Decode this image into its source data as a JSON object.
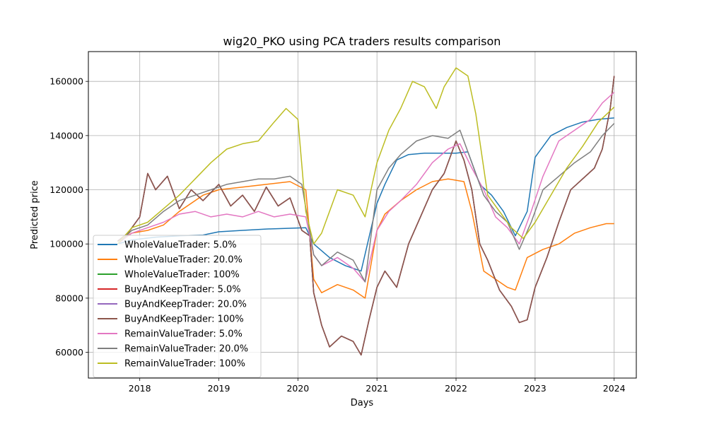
{
  "chart_data": {
    "type": "line",
    "title": "wig20_PKO using PCA traders results comparison",
    "xlabel": "Days",
    "ylabel": "Predicted price",
    "xlim": [
      2017.35,
      2024.28
    ],
    "ylim": [
      50500,
      171000
    ],
    "x_ticks": [
      2018,
      2019,
      2020,
      2021,
      2022,
      2023,
      2024
    ],
    "x_tick_labels": [
      "2018",
      "2019",
      "2020",
      "2021",
      "2022",
      "2023",
      "2024"
    ],
    "y_ticks": [
      60000,
      80000,
      100000,
      120000,
      140000,
      160000
    ],
    "y_tick_labels": [
      "60000",
      "80000",
      "100000",
      "120000",
      "140000",
      "160000"
    ],
    "grid": true,
    "legend_position": "lower-left",
    "series": [
      {
        "name": "WholeValueTrader: 5.0%",
        "color": "#1f77b4",
        "x": [
          2017.72,
          2017.9,
          2018.2,
          2018.5,
          2018.8,
          2019.0,
          2019.3,
          2019.6,
          2019.9,
          2020.1,
          2020.2,
          2020.4,
          2020.6,
          2020.8,
          2021.0,
          2021.1,
          2021.25,
          2021.4,
          2021.6,
          2021.8,
          2022.0,
          2022.15,
          2022.3,
          2022.45,
          2022.6,
          2022.75,
          2022.9,
          2023.0,
          2023.2,
          2023.4,
          2023.6,
          2023.8,
          2024.0
        ],
        "y": [
          100000,
          101500,
          102500,
          103000,
          103300,
          104500,
          105000,
          105500,
          105800,
          106000,
          100000,
          95000,
          92000,
          90000,
          115000,
          122000,
          131000,
          133000,
          133500,
          133500,
          133500,
          134000,
          122000,
          118000,
          112000,
          103000,
          112000,
          132000,
          140000,
          143000,
          145000,
          146000,
          146500
        ]
      },
      {
        "name": "WholeValueTrader: 20.0%",
        "color": "#ff7f0e",
        "x": [
          2017.72,
          2017.9,
          2018.1,
          2018.3,
          2018.5,
          2018.8,
          2019.0,
          2019.3,
          2019.6,
          2019.9,
          2020.1,
          2020.2,
          2020.3,
          2020.5,
          2020.7,
          2020.85,
          2021.0,
          2021.1,
          2021.3,
          2021.5,
          2021.7,
          2021.9,
          2022.1,
          2022.2,
          2022.35,
          2022.5,
          2022.65,
          2022.75,
          2022.9,
          2023.1,
          2023.3,
          2023.5,
          2023.7,
          2023.9,
          2024.0
        ],
        "y": [
          101000,
          104000,
          105000,
          107000,
          112000,
          118000,
          120000,
          121000,
          122000,
          123000,
          120000,
          87000,
          82000,
          85000,
          83000,
          80000,
          105000,
          111000,
          116000,
          120000,
          123000,
          124000,
          123000,
          112000,
          90000,
          87000,
          84000,
          83000,
          95000,
          98000,
          100000,
          104000,
          106000,
          107500,
          107500
        ]
      },
      {
        "name": "WholeValueTrader: 100%",
        "color": "#2ca02c",
        "x": [
          2017.72,
          2017.85,
          2018.0,
          2018.1,
          2018.2,
          2018.35,
          2018.5,
          2018.65,
          2018.8,
          2019.0,
          2019.15,
          2019.3,
          2019.45,
          2019.6,
          2019.75,
          2019.9,
          2020.05,
          2020.15,
          2020.2,
          2020.3,
          2020.4,
          2020.55,
          2020.7,
          2020.8,
          2020.9,
          2021.0,
          2021.1,
          2021.25,
          2021.4,
          2021.55,
          2021.7,
          2021.85,
          2022.0,
          2022.1,
          2022.2,
          2022.3,
          2022.4,
          2022.55,
          2022.7,
          2022.8,
          2022.9,
          2023.0,
          2023.15,
          2023.3,
          2023.45,
          2023.6,
          2023.75,
          2023.85,
          2023.95,
          2024.0
        ],
        "y": [
          101000,
          104000,
          110000,
          126000,
          120000,
          125000,
          113000,
          120000,
          116000,
          122000,
          114000,
          118000,
          112000,
          121000,
          114000,
          117000,
          105000,
          103000,
          82000,
          70000,
          62000,
          66000,
          64000,
          59000,
          72000,
          84000,
          90000,
          84000,
          100000,
          110000,
          120000,
          126000,
          138000,
          131000,
          120000,
          100000,
          94000,
          83000,
          77000,
          71000,
          72000,
          84000,
          95000,
          108000,
          120000,
          124000,
          128000,
          135000,
          150000,
          162000
        ]
      },
      {
        "name": "BuyAndKeepTrader: 5.0%",
        "color": "#d62728",
        "x": [
          2017.72,
          2017.85,
          2018.0,
          2018.1,
          2018.2,
          2018.35,
          2018.5,
          2018.65,
          2018.8,
          2019.0,
          2019.15,
          2019.3,
          2019.45,
          2019.6,
          2019.75,
          2019.9,
          2020.05,
          2020.15,
          2020.2,
          2020.3,
          2020.4,
          2020.55,
          2020.7,
          2020.8,
          2020.9,
          2021.0,
          2021.1,
          2021.25,
          2021.4,
          2021.55,
          2021.7,
          2021.85,
          2022.0,
          2022.1,
          2022.2,
          2022.3,
          2022.4,
          2022.55,
          2022.7,
          2022.8,
          2022.9,
          2023.0,
          2023.15,
          2023.3,
          2023.45,
          2023.6,
          2023.75,
          2023.85,
          2023.95,
          2024.0
        ],
        "y": [
          101000,
          104000,
          110000,
          126000,
          120000,
          125000,
          113000,
          120000,
          116000,
          122000,
          114000,
          118000,
          112000,
          121000,
          114000,
          117000,
          105000,
          103000,
          82000,
          70000,
          62000,
          66000,
          64000,
          59000,
          72000,
          84000,
          90000,
          84000,
          100000,
          110000,
          120000,
          126000,
          138000,
          131000,
          120000,
          100000,
          94000,
          83000,
          77000,
          71000,
          72000,
          84000,
          95000,
          108000,
          120000,
          124000,
          128000,
          135000,
          150000,
          162000
        ]
      },
      {
        "name": "BuyAndKeepTrader: 20.0%",
        "color": "#9467bd",
        "x": [
          2017.72,
          2017.85,
          2018.0,
          2018.1,
          2018.2,
          2018.35,
          2018.5,
          2018.65,
          2018.8,
          2019.0,
          2019.15,
          2019.3,
          2019.45,
          2019.6,
          2019.75,
          2019.9,
          2020.05,
          2020.15,
          2020.2,
          2020.3,
          2020.4,
          2020.55,
          2020.7,
          2020.8,
          2020.9,
          2021.0,
          2021.1,
          2021.25,
          2021.4,
          2021.55,
          2021.7,
          2021.85,
          2022.0,
          2022.1,
          2022.2,
          2022.3,
          2022.4,
          2022.55,
          2022.7,
          2022.8,
          2022.9,
          2023.0,
          2023.15,
          2023.3,
          2023.45,
          2023.6,
          2023.75,
          2023.85,
          2023.95,
          2024.0
        ],
        "y": [
          101000,
          104000,
          110000,
          126000,
          120000,
          125000,
          113000,
          120000,
          116000,
          122000,
          114000,
          118000,
          112000,
          121000,
          114000,
          117000,
          105000,
          103000,
          82000,
          70000,
          62000,
          66000,
          64000,
          59000,
          72000,
          84000,
          90000,
          84000,
          100000,
          110000,
          120000,
          126000,
          138000,
          131000,
          120000,
          100000,
          94000,
          83000,
          77000,
          71000,
          72000,
          84000,
          95000,
          108000,
          120000,
          124000,
          128000,
          135000,
          150000,
          162000
        ]
      },
      {
        "name": "BuyAndKeepTrader: 100%",
        "color": "#8c564b",
        "x": [
          2017.72,
          2017.85,
          2018.0,
          2018.1,
          2018.2,
          2018.35,
          2018.5,
          2018.65,
          2018.8,
          2019.0,
          2019.15,
          2019.3,
          2019.45,
          2019.6,
          2019.75,
          2019.9,
          2020.05,
          2020.15,
          2020.2,
          2020.3,
          2020.4,
          2020.55,
          2020.7,
          2020.8,
          2020.9,
          2021.0,
          2021.1,
          2021.25,
          2021.4,
          2021.55,
          2021.7,
          2021.85,
          2022.0,
          2022.1,
          2022.2,
          2022.3,
          2022.4,
          2022.55,
          2022.7,
          2022.8,
          2022.9,
          2023.0,
          2023.15,
          2023.3,
          2023.45,
          2023.6,
          2023.75,
          2023.85,
          2023.95,
          2024.0
        ],
        "y": [
          101000,
          104000,
          110000,
          126000,
          120000,
          125000,
          113000,
          120000,
          116000,
          122000,
          114000,
          118000,
          112000,
          121000,
          114000,
          117000,
          105000,
          103000,
          82000,
          70000,
          62000,
          66000,
          64000,
          59000,
          72000,
          84000,
          90000,
          84000,
          100000,
          110000,
          120000,
          126000,
          138000,
          131000,
          120000,
          100000,
          94000,
          83000,
          77000,
          71000,
          72000,
          84000,
          95000,
          108000,
          120000,
          124000,
          128000,
          135000,
          150000,
          162000
        ]
      },
      {
        "name": "RemainValueTrader: 5.0%",
        "color": "#e377c2",
        "x": [
          2017.72,
          2017.9,
          2018.1,
          2018.3,
          2018.5,
          2018.7,
          2018.9,
          2019.1,
          2019.3,
          2019.5,
          2019.7,
          2019.9,
          2020.1,
          2020.2,
          2020.3,
          2020.5,
          2020.7,
          2020.85,
          2021.0,
          2021.15,
          2021.3,
          2021.5,
          2021.7,
          2021.9,
          2022.05,
          2022.2,
          2022.35,
          2022.5,
          2022.65,
          2022.8,
          2022.95,
          2023.1,
          2023.3,
          2023.5,
          2023.7,
          2023.85,
          2024.0
        ],
        "y": [
          100000,
          104000,
          106000,
          108000,
          111000,
          112000,
          110000,
          111000,
          110000,
          112000,
          110000,
          111000,
          110000,
          96000,
          92000,
          95000,
          91000,
          86000,
          105000,
          112000,
          116000,
          122000,
          130000,
          135000,
          137000,
          128000,
          120000,
          110000,
          106000,
          100000,
          112000,
          125000,
          138000,
          142000,
          146000,
          152000,
          156000
        ]
      },
      {
        "name": "RemainValueTrader: 20.0%",
        "color": "#7f7f7f",
        "x": [
          2017.72,
          2017.9,
          2018.1,
          2018.3,
          2018.5,
          2018.7,
          2018.9,
          2019.1,
          2019.3,
          2019.5,
          2019.7,
          2019.9,
          2020.05,
          2020.2,
          2020.3,
          2020.5,
          2020.7,
          2020.85,
          2021.0,
          2021.15,
          2021.3,
          2021.5,
          2021.7,
          2021.9,
          2022.05,
          2022.2,
          2022.35,
          2022.5,
          2022.65,
          2022.8,
          2022.95,
          2023.1,
          2023.3,
          2023.5,
          2023.7,
          2023.85,
          2024.0
        ],
        "y": [
          100000,
          105000,
          107000,
          112000,
          116000,
          118000,
          120000,
          122000,
          123000,
          124000,
          124000,
          125000,
          122000,
          96000,
          92000,
          97000,
          94000,
          86000,
          120000,
          128000,
          133000,
          138000,
          140000,
          139000,
          142000,
          130000,
          118000,
          112000,
          108000,
          98000,
          108000,
          120000,
          125000,
          130000,
          134000,
          140000,
          144500
        ]
      },
      {
        "name": "RemainValueTrader: 100%",
        "color": "#bcbd22",
        "x": [
          2017.72,
          2017.9,
          2018.1,
          2018.3,
          2018.5,
          2018.7,
          2018.9,
          2019.1,
          2019.3,
          2019.5,
          2019.7,
          2019.85,
          2020.0,
          2020.1,
          2020.2,
          2020.3,
          2020.5,
          2020.7,
          2020.85,
          2021.0,
          2021.15,
          2021.3,
          2021.45,
          2021.6,
          2021.75,
          2021.85,
          2022.0,
          2022.15,
          2022.25,
          2022.4,
          2022.55,
          2022.7,
          2022.85,
          2023.0,
          2023.2,
          2023.4,
          2023.6,
          2023.8,
          2024.0
        ],
        "y": [
          100000,
          106000,
          108000,
          113000,
          118000,
          124000,
          130000,
          135000,
          137000,
          138000,
          145000,
          150000,
          146000,
          112000,
          100000,
          104000,
          120000,
          118000,
          110000,
          130000,
          142000,
          150000,
          160000,
          158000,
          150000,
          158000,
          165000,
          162000,
          148000,
          118000,
          112000,
          106000,
          102000,
          108000,
          118000,
          128000,
          136000,
          145000,
          150500
        ]
      }
    ]
  }
}
